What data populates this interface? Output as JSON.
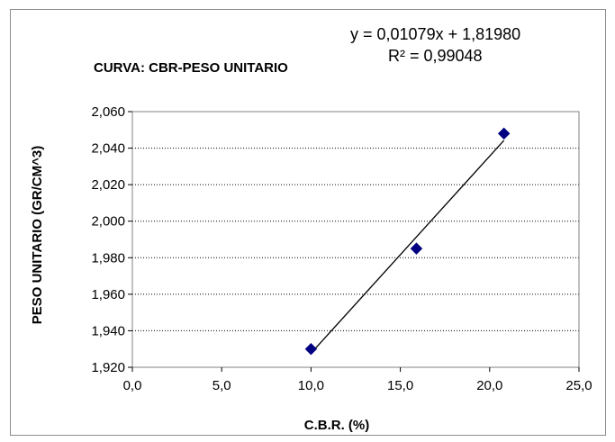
{
  "chart_data": {
    "type": "scatter",
    "title": "CURVA: CBR-PESO UNITARIO",
    "xlabel": "C.B.R. (%)",
    "ylabel": "PESO UNITARIO (GR/CM^3)",
    "xlim": [
      0,
      25
    ],
    "ylim": [
      1.92,
      2.06
    ],
    "x_ticks": [
      "0,0",
      "5,0",
      "10,0",
      "15,0",
      "20,0",
      "25,0"
    ],
    "y_ticks": [
      "1,920",
      "1,940",
      "1,960",
      "1,980",
      "2,000",
      "2,020",
      "2,040",
      "2,060"
    ],
    "grid": "horizontal dotted",
    "legend": "none",
    "marker_color": "#000080",
    "line_color": "#000000",
    "series": [
      {
        "x": [
          10.0,
          15.9,
          20.8
        ],
        "y": [
          1.93,
          1.985,
          2.048
        ]
      }
    ],
    "trendline": {
      "type": "linear",
      "slope": 0.01079,
      "intercept": 1.8198,
      "x_range": [
        10.0,
        20.8
      ],
      "equation_label": "y = 0,01079x + 1,81980",
      "r2_label": "R² = 0,99048"
    }
  }
}
